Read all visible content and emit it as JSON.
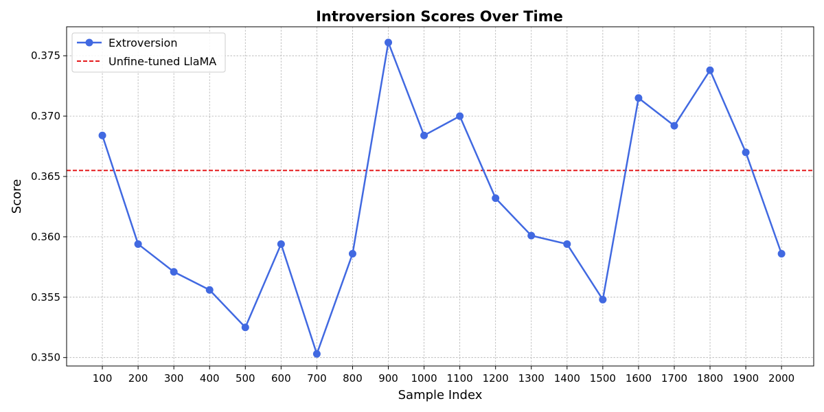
{
  "chart_data": {
    "type": "line",
    "title": "Introversion Scores Over Time",
    "xlabel": "Sample Index",
    "ylabel": "Score",
    "x": [
      100,
      200,
      300,
      400,
      500,
      600,
      700,
      800,
      900,
      1000,
      1100,
      1200,
      1300,
      1400,
      1500,
      1600,
      1700,
      1800,
      1900,
      2000
    ],
    "xticks": [
      "100",
      "200",
      "300",
      "400",
      "500",
      "600",
      "700",
      "800",
      "900",
      "1000",
      "1100",
      "1200",
      "1300",
      "1400",
      "1500",
      "1600",
      "1700",
      "1800",
      "1900",
      "2000"
    ],
    "yticks": [
      "0.350",
      "0.355",
      "0.360",
      "0.365",
      "0.370",
      "0.375"
    ],
    "ytick_values": [
      0.35,
      0.355,
      0.36,
      0.365,
      0.37,
      0.375
    ],
    "xlim": [
      0,
      2090
    ],
    "ylim": [
      0.3493,
      0.3774
    ],
    "grid": true,
    "legend_position": "upper-left",
    "series": [
      {
        "name": "Extroversion",
        "color": "#4169e1",
        "style": "solid",
        "marker": "circle",
        "values": [
          0.3684,
          0.3594,
          0.3571,
          0.3556,
          0.3525,
          0.3594,
          0.3503,
          0.3586,
          0.3761,
          0.3684,
          0.37,
          0.3632,
          0.3601,
          0.3594,
          0.3548,
          0.3715,
          0.3692,
          0.3738,
          0.367,
          0.3586
        ]
      }
    ],
    "reference_lines": [
      {
        "name": "Unfine-tuned LlaMA",
        "value": 0.3655,
        "color": "#e41a1c",
        "style": "dashed"
      }
    ]
  }
}
